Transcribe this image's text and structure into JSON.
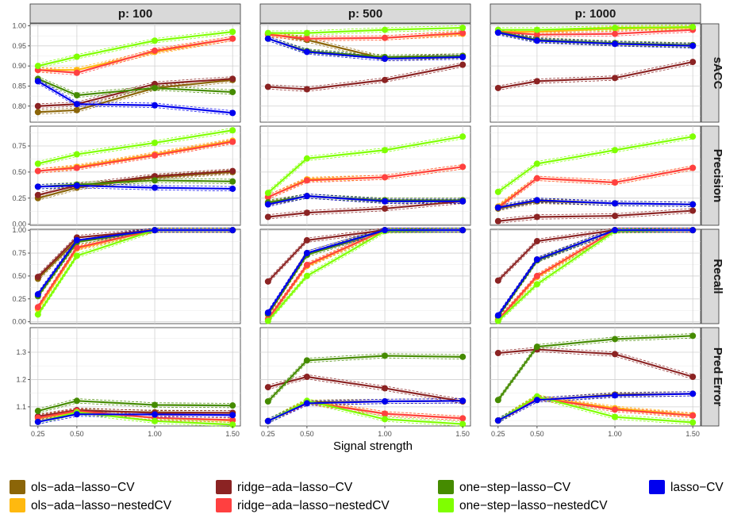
{
  "chart_data": {
    "type": "line",
    "xlabel": "Signal strength",
    "x": [
      0.25,
      0.5,
      1.0,
      1.5
    ],
    "x_tick_labels": [
      "0.25",
      "0.50",
      "1.00",
      "1.50"
    ],
    "columns": [
      {
        "label": "p:  100"
      },
      {
        "label": "p:  500"
      },
      {
        "label": "p:  1000"
      }
    ],
    "rows": [
      {
        "label": "sACC",
        "ylim": [
          0.76,
          1.005
        ],
        "ticks": [
          0.8,
          0.85,
          0.9,
          0.95,
          1.0
        ],
        "tick_labels": [
          "0.80",
          "0.85",
          "0.90",
          "0.95",
          "1.00"
        ]
      },
      {
        "label": "Precision",
        "ylim": [
          -0.01,
          0.94
        ],
        "ticks": [
          0.0,
          0.25,
          0.5,
          0.75
        ],
        "tick_labels": [
          "0.00",
          "0.25",
          "0.50",
          "0.75"
        ]
      },
      {
        "label": "Recall",
        "ylim": [
          -0.02,
          1.01
        ],
        "ticks": [
          0.0,
          0.25,
          0.5,
          0.75,
          1.0
        ],
        "tick_labels": [
          "0.00",
          "0.25",
          "0.50",
          "0.75",
          "1.00"
        ]
      },
      {
        "label": "Pred Error",
        "ylim": [
          1.03,
          1.39
        ],
        "ticks": [
          1.1,
          1.2,
          1.3
        ],
        "tick_labels": [
          "1.1",
          "1.2",
          "1.3"
        ]
      }
    ],
    "series": [
      {
        "name": "ols−ada−lasso−CV",
        "color": "#8B6508"
      },
      {
        "name": "ols−ada−lasso−nestedCV",
        "color": "#FFB90F"
      },
      {
        "name": "ridge−ada−lasso−CV",
        "color": "#8B2323"
      },
      {
        "name": "ridge−ada−lasso−nestedCV",
        "color": "#FF4040"
      },
      {
        "name": "one−step−lasso−CV",
        "color": "#458B00"
      },
      {
        "name": "one−step−lasso−nestedCV",
        "color": "#7FFF00"
      },
      {
        "name": "lasso−CV",
        "color": "#0000EE"
      }
    ],
    "legend_order": [
      0,
      2,
      4,
      6,
      1,
      3,
      5
    ],
    "legend_position": "bottom",
    "grid": true,
    "values": [
      [
        [
          [
            0.785,
            0.79,
            0.845,
            0.865
          ],
          [
            0.89,
            0.89,
            0.935,
            0.968
          ],
          [
            0.8,
            0.805,
            0.855,
            0.868
          ],
          [
            0.89,
            0.883,
            0.938,
            0.968
          ],
          [
            0.868,
            0.827,
            0.845,
            0.835
          ],
          [
            0.9,
            0.923,
            0.963,
            0.985
          ],
          [
            0.862,
            0.805,
            0.802,
            0.783
          ]
        ],
        [
          [
            0.98,
            0.965,
            0.918,
            0.925
          ],
          [
            0.98,
            0.968,
            0.97,
            0.98
          ],
          [
            0.848,
            0.842,
            0.865,
            0.903
          ],
          [
            0.978,
            0.968,
            0.97,
            0.982
          ],
          [
            0.968,
            0.937,
            0.922,
            0.925
          ],
          [
            0.982,
            0.982,
            0.99,
            0.995
          ],
          [
            0.968,
            0.935,
            0.918,
            0.922
          ]
        ],
        [
          [
            0.985,
            0.965,
            0.955,
            0.952
          ],
          [
            0.985,
            0.985,
            0.993,
            0.995
          ],
          [
            0.845,
            0.862,
            0.87,
            0.91
          ],
          [
            0.985,
            0.978,
            0.98,
            0.99
          ],
          [
            0.985,
            0.965,
            0.957,
            0.952
          ],
          [
            0.99,
            0.99,
            0.995,
            0.997
          ],
          [
            0.983,
            0.963,
            0.955,
            0.95
          ]
        ]
      ],
      [
        [
          [
            0.25,
            0.35,
            0.45,
            0.5
          ],
          [
            0.51,
            0.55,
            0.67,
            0.8
          ],
          [
            0.28,
            0.37,
            0.46,
            0.51
          ],
          [
            0.51,
            0.54,
            0.66,
            0.79
          ],
          [
            0.36,
            0.38,
            0.42,
            0.41
          ],
          [
            0.58,
            0.67,
            0.78,
            0.9
          ],
          [
            0.36,
            0.37,
            0.35,
            0.34
          ]
        ],
        [
          [
            0.2,
            0.27,
            0.22,
            0.22
          ],
          [
            0.26,
            0.43,
            0.45,
            0.55
          ],
          [
            0.07,
            0.11,
            0.15,
            0.22
          ],
          [
            0.26,
            0.42,
            0.45,
            0.55
          ],
          [
            0.21,
            0.27,
            0.23,
            0.23
          ],
          [
            0.3,
            0.63,
            0.71,
            0.84
          ],
          [
            0.19,
            0.27,
            0.22,
            0.22
          ]
        ],
        [
          [
            0.15,
            0.22,
            0.2,
            0.19
          ],
          [
            0.17,
            0.44,
            0.4,
            0.54
          ],
          [
            0.03,
            0.07,
            0.08,
            0.13
          ],
          [
            0.16,
            0.44,
            0.4,
            0.54
          ],
          [
            0.16,
            0.23,
            0.2,
            0.19
          ],
          [
            0.31,
            0.58,
            0.71,
            0.84
          ],
          [
            0.16,
            0.23,
            0.2,
            0.19
          ]
        ]
      ],
      [
        [
          [
            0.47,
            0.89,
            1.0,
            1.0
          ],
          [
            0.14,
            0.8,
            1.0,
            1.0
          ],
          [
            0.49,
            0.92,
            1.0,
            1.0
          ],
          [
            0.16,
            0.81,
            1.0,
            1.0
          ],
          [
            0.28,
            0.87,
            1.0,
            1.0
          ],
          [
            0.08,
            0.72,
            1.0,
            1.0
          ],
          [
            0.3,
            0.89,
            1.0,
            1.0
          ]
        ],
        [
          [
            0.08,
            0.75,
            1.0,
            1.0
          ],
          [
            0.03,
            0.61,
            1.0,
            1.0
          ],
          [
            0.44,
            0.89,
            1.0,
            1.0
          ],
          [
            0.03,
            0.62,
            1.0,
            1.0
          ],
          [
            0.09,
            0.73,
            1.0,
            1.0
          ],
          [
            0.01,
            0.5,
            0.99,
            1.0
          ],
          [
            0.1,
            0.75,
            1.0,
            1.0
          ]
        ],
        [
          [
            0.06,
            0.68,
            1.0,
            1.0
          ],
          [
            0.02,
            0.49,
            1.0,
            1.0
          ],
          [
            0.45,
            0.88,
            1.0,
            1.0
          ],
          [
            0.02,
            0.5,
            1.0,
            1.0
          ],
          [
            0.06,
            0.67,
            1.0,
            1.0
          ],
          [
            0.01,
            0.41,
            0.99,
            1.0
          ],
          [
            0.07,
            0.68,
            1.0,
            1.0
          ]
        ]
      ],
      [
        [
          [
            1.063,
            1.085,
            1.08,
            1.078
          ],
          [
            1.057,
            1.082,
            1.06,
            1.05
          ],
          [
            1.065,
            1.088,
            1.078,
            1.078
          ],
          [
            1.06,
            1.085,
            1.06,
            1.052
          ],
          [
            1.085,
            1.122,
            1.107,
            1.105
          ],
          [
            1.045,
            1.08,
            1.048,
            1.035
          ],
          [
            1.045,
            1.073,
            1.072,
            1.07
          ]
        ],
        [
          [
            1.048,
            1.117,
            1.12,
            1.122
          ],
          [
            1.048,
            1.12,
            1.075,
            1.058
          ],
          [
            1.172,
            1.21,
            1.168,
            1.12
          ],
          [
            1.048,
            1.117,
            1.075,
            1.058
          ],
          [
            1.12,
            1.27,
            1.287,
            1.283
          ],
          [
            1.048,
            1.122,
            1.055,
            1.037
          ],
          [
            1.048,
            1.113,
            1.12,
            1.122
          ]
        ],
        [
          [
            1.05,
            1.125,
            1.145,
            1.148
          ],
          [
            1.05,
            1.135,
            1.095,
            1.07
          ],
          [
            1.297,
            1.31,
            1.293,
            1.21
          ],
          [
            1.05,
            1.133,
            1.09,
            1.068
          ],
          [
            1.125,
            1.32,
            1.348,
            1.36
          ],
          [
            1.05,
            1.138,
            1.063,
            1.043
          ],
          [
            1.05,
            1.125,
            1.142,
            1.148
          ]
        ]
      ]
    ]
  }
}
